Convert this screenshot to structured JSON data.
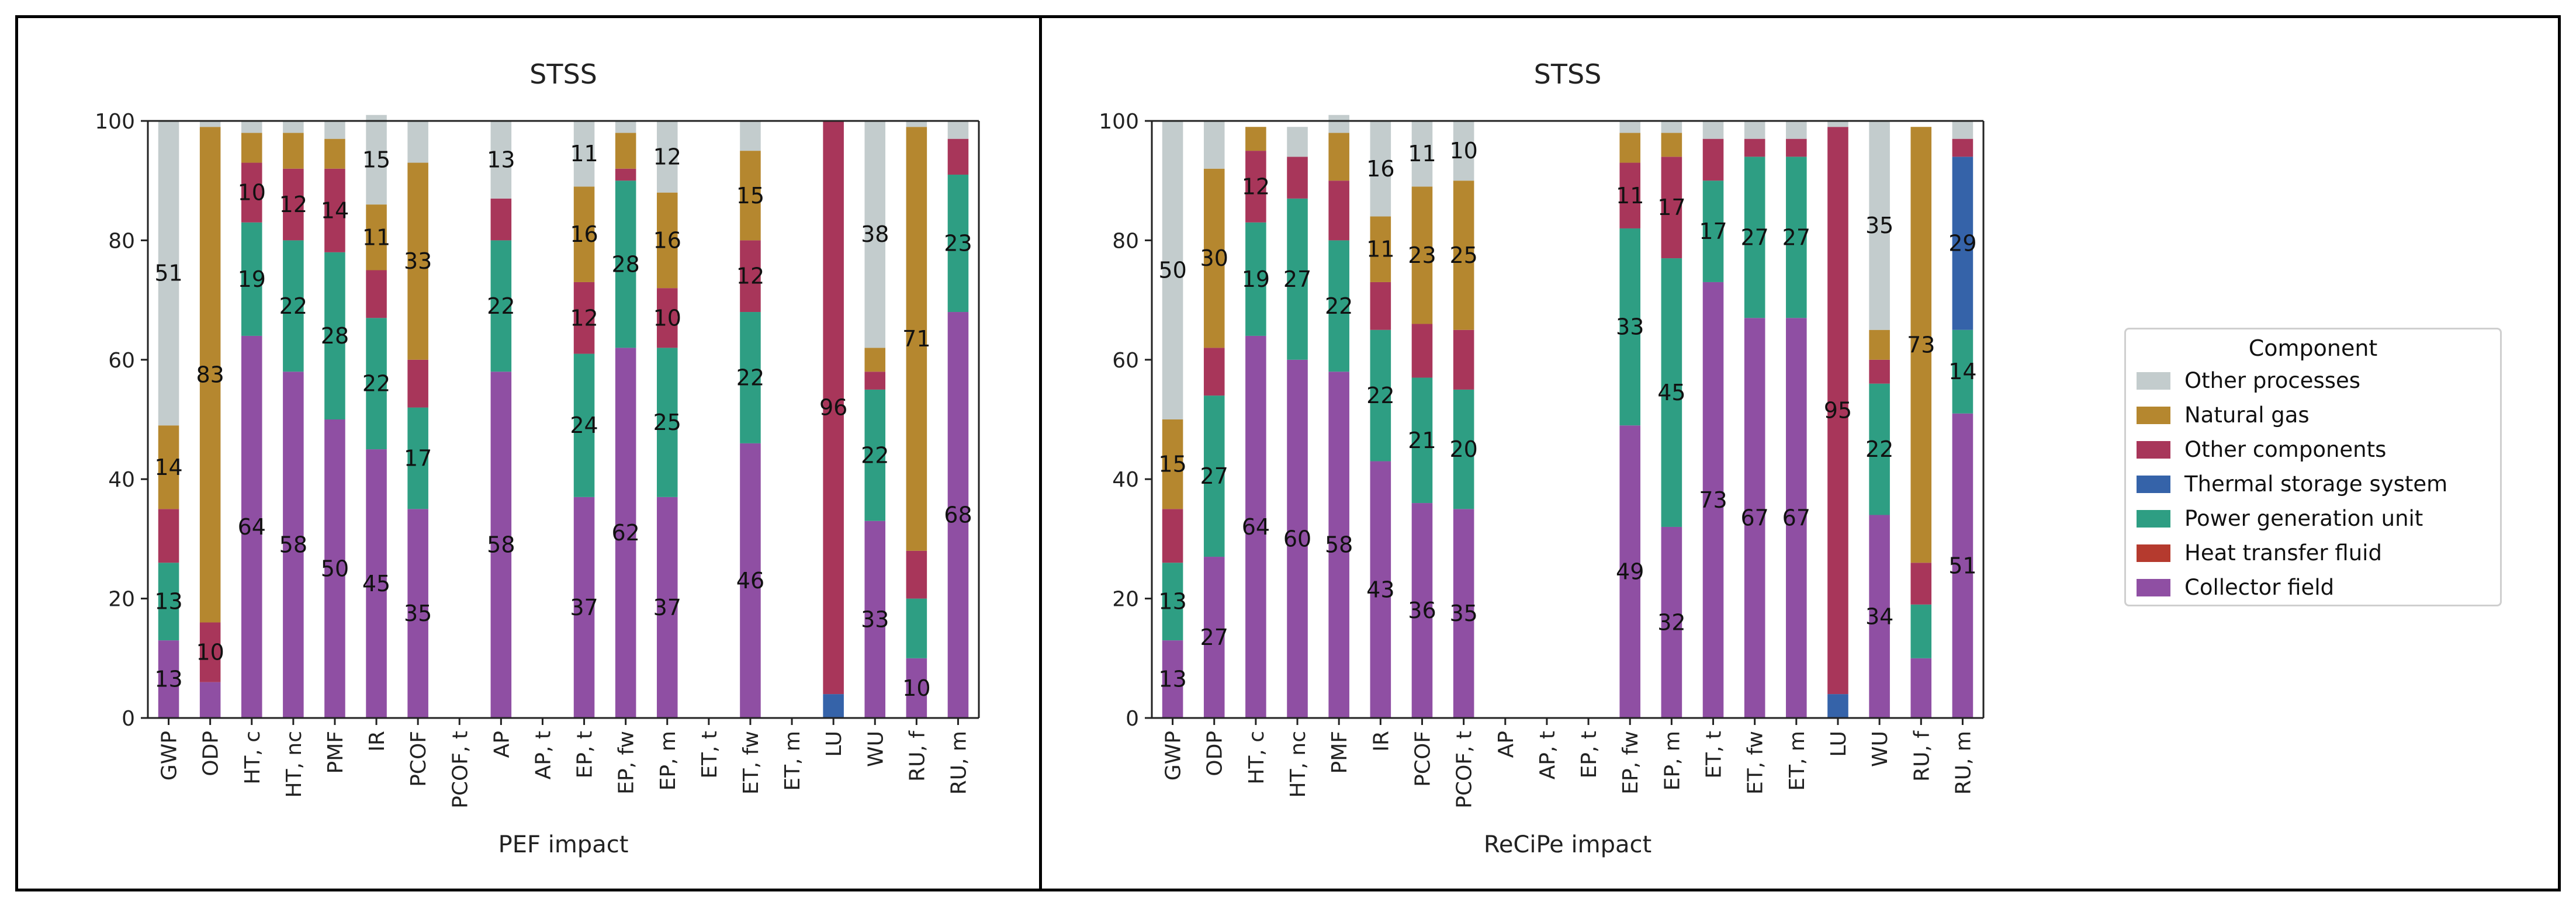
{
  "colors": {
    "Collector field": "#8f4fa3",
    "Heat transfer fluid": "#b53a2e",
    "Power generation unit": "#2e9e83",
    "Thermal storage system": "#3563a9",
    "Other components": "#a8365a",
    "Natural gas": "#b5872f",
    "Other processes": "#c3cccd"
  },
  "legend": {
    "title": "Component",
    "items": [
      "Other processes",
      "Natural gas",
      "Other components",
      "Thermal storage system",
      "Power generation unit",
      "Heat transfer fluid",
      "Collector field"
    ]
  },
  "chart_data": [
    {
      "type": "bar",
      "stacked": true,
      "title": "STSS",
      "xlabel": "PEF impact",
      "ylabel": "",
      "ylim": [
        0,
        100
      ],
      "yticks": [
        0,
        20,
        40,
        60,
        80,
        100
      ],
      "categories": [
        "GWP",
        "ODP",
        "HT, c",
        "HT, nc",
        "PMF",
        "IR",
        "PCOF",
        "PCOF, t",
        "AP",
        "AP, t",
        "EP, t",
        "EP, fw",
        "EP, m",
        "ET, t",
        "ET, fw",
        "ET, m",
        "LU",
        "WU",
        "RU, f",
        "RU, m"
      ],
      "series": [
        {
          "name": "Collector field",
          "values": [
            13,
            6,
            64,
            58,
            50,
            45,
            35,
            0,
            58,
            0,
            37,
            62,
            37,
            0,
            46,
            0,
            0,
            33,
            10,
            68
          ]
        },
        {
          "name": "Heat transfer fluid",
          "values": [
            0,
            0,
            0,
            0,
            0,
            0,
            0,
            0,
            0,
            0,
            0,
            0,
            0,
            0,
            0,
            0,
            0,
            0,
            0,
            0
          ]
        },
        {
          "name": "Power generation unit",
          "values": [
            13,
            0,
            19,
            22,
            28,
            22,
            17,
            0,
            22,
            0,
            24,
            28,
            25,
            0,
            22,
            0,
            0,
            22,
            10,
            23
          ]
        },
        {
          "name": "Thermal storage system",
          "values": [
            0,
            0,
            0,
            0,
            0,
            0,
            0,
            0,
            0,
            0,
            0,
            0,
            0,
            0,
            0,
            0,
            4,
            0,
            0,
            0
          ]
        },
        {
          "name": "Other components",
          "values": [
            9,
            10,
            10,
            12,
            14,
            8,
            8,
            0,
            7,
            0,
            12,
            2,
            10,
            0,
            12,
            0,
            96,
            3,
            8,
            6
          ]
        },
        {
          "name": "Natural gas",
          "values": [
            14,
            83,
            5,
            6,
            5,
            11,
            33,
            0,
            0,
            0,
            16,
            6,
            16,
            0,
            15,
            0,
            0,
            4,
            71,
            0
          ]
        },
        {
          "name": "Other processes",
          "values": [
            51,
            1,
            2,
            2,
            3,
            15,
            7,
            0,
            13,
            0,
            11,
            2,
            12,
            0,
            5,
            0,
            0,
            38,
            1,
            3
          ]
        }
      ],
      "labels": [
        {
          "ci": 0,
          "s": 0,
          "text": "13"
        },
        {
          "ci": 0,
          "s": 2,
          "text": "13"
        },
        {
          "ci": 0,
          "s": 5,
          "text": "14"
        },
        {
          "ci": 0,
          "s": 6,
          "text": "51"
        },
        {
          "ci": 1,
          "s": 4,
          "text": "10"
        },
        {
          "ci": 1,
          "s": 5,
          "text": "83"
        },
        {
          "ci": 2,
          "s": 0,
          "text": "64"
        },
        {
          "ci": 2,
          "s": 2,
          "text": "19"
        },
        {
          "ci": 2,
          "s": 4,
          "text": "10"
        },
        {
          "ci": 3,
          "s": 0,
          "text": "58"
        },
        {
          "ci": 3,
          "s": 2,
          "text": "22"
        },
        {
          "ci": 3,
          "s": 4,
          "text": "12"
        },
        {
          "ci": 4,
          "s": 0,
          "text": "50"
        },
        {
          "ci": 4,
          "s": 2,
          "text": "28"
        },
        {
          "ci": 4,
          "s": 4,
          "text": "14"
        },
        {
          "ci": 5,
          "s": 0,
          "text": "45"
        },
        {
          "ci": 5,
          "s": 2,
          "text": "22"
        },
        {
          "ci": 5,
          "s": 5,
          "text": "11"
        },
        {
          "ci": 5,
          "s": 6,
          "text": "15"
        },
        {
          "ci": 6,
          "s": 0,
          "text": "35"
        },
        {
          "ci": 6,
          "s": 2,
          "text": "17"
        },
        {
          "ci": 6,
          "s": 5,
          "text": "33"
        },
        {
          "ci": 8,
          "s": 0,
          "text": "58"
        },
        {
          "ci": 8,
          "s": 2,
          "text": "22"
        },
        {
          "ci": 8,
          "s": 6,
          "text": "13"
        },
        {
          "ci": 10,
          "s": 0,
          "text": "37"
        },
        {
          "ci": 10,
          "s": 2,
          "text": "24"
        },
        {
          "ci": 10,
          "s": 4,
          "text": "12"
        },
        {
          "ci": 10,
          "s": 5,
          "text": "16"
        },
        {
          "ci": 10,
          "s": 6,
          "text": "11"
        },
        {
          "ci": 11,
          "s": 0,
          "text": "62"
        },
        {
          "ci": 11,
          "s": 2,
          "text": "28"
        },
        {
          "ci": 12,
          "s": 0,
          "text": "37"
        },
        {
          "ci": 12,
          "s": 2,
          "text": "25"
        },
        {
          "ci": 12,
          "s": 4,
          "text": "10"
        },
        {
          "ci": 12,
          "s": 5,
          "text": "16"
        },
        {
          "ci": 12,
          "s": 6,
          "text": "12"
        },
        {
          "ci": 14,
          "s": 0,
          "text": "46"
        },
        {
          "ci": 14,
          "s": 2,
          "text": "22"
        },
        {
          "ci": 14,
          "s": 4,
          "text": "12"
        },
        {
          "ci": 14,
          "s": 5,
          "text": "15"
        },
        {
          "ci": 16,
          "s": 4,
          "text": "96"
        },
        {
          "ci": 17,
          "s": 0,
          "text": "33"
        },
        {
          "ci": 17,
          "s": 2,
          "text": "22"
        },
        {
          "ci": 17,
          "s": 6,
          "text": "38"
        },
        {
          "ci": 18,
          "s": 0,
          "text": "10"
        },
        {
          "ci": 18,
          "s": 5,
          "text": "71"
        },
        {
          "ci": 19,
          "s": 0,
          "text": "68"
        },
        {
          "ci": 19,
          "s": 2,
          "text": "23"
        }
      ]
    },
    {
      "type": "bar",
      "stacked": true,
      "title": "STSS",
      "xlabel": "ReCiPe impact",
      "ylabel": "",
      "ylim": [
        0,
        100
      ],
      "yticks": [
        0,
        20,
        40,
        60,
        80,
        100
      ],
      "categories": [
        "GWP",
        "ODP",
        "HT, c",
        "HT, nc",
        "PMF",
        "IR",
        "PCOF",
        "PCOF, t",
        "AP",
        "AP, t",
        "EP, t",
        "EP, fw",
        "EP, m",
        "ET, t",
        "ET, fw",
        "ET, m",
        "LU",
        "WU",
        "RU, f",
        "RU, m"
      ],
      "series": [
        {
          "name": "Collector field",
          "values": [
            13,
            27,
            64,
            60,
            58,
            43,
            36,
            35,
            0,
            0,
            0,
            49,
            32,
            73,
            67,
            67,
            0,
            34,
            10,
            51
          ]
        },
        {
          "name": "Heat transfer fluid",
          "values": [
            0,
            0,
            0,
            0,
            0,
            0,
            0,
            0,
            0,
            0,
            0,
            0,
            0,
            0,
            0,
            0,
            0,
            0,
            0,
            0
          ]
        },
        {
          "name": "Power generation unit",
          "values": [
            13,
            27,
            19,
            27,
            22,
            22,
            21,
            20,
            0,
            0,
            0,
            33,
            45,
            17,
            27,
            27,
            0,
            22,
            9,
            14
          ]
        },
        {
          "name": "Thermal storage system",
          "values": [
            0,
            0,
            0,
            0,
            0,
            0,
            0,
            0,
            0,
            0,
            0,
            0,
            0,
            0,
            0,
            0,
            4,
            0,
            0,
            29
          ]
        },
        {
          "name": "Other components",
          "values": [
            9,
            8,
            12,
            7,
            10,
            8,
            9,
            10,
            0,
            0,
            0,
            11,
            17,
            7,
            3,
            3,
            95,
            4,
            7,
            3
          ]
        },
        {
          "name": "Natural gas",
          "values": [
            15,
            30,
            4,
            0,
            8,
            11,
            23,
            25,
            0,
            0,
            0,
            5,
            4,
            0,
            0,
            0,
            0,
            5,
            73,
            0
          ]
        },
        {
          "name": "Other processes",
          "values": [
            50,
            8,
            0,
            5,
            3,
            16,
            11,
            10,
            0,
            0,
            0,
            2,
            2,
            3,
            3,
            3,
            1,
            35,
            0,
            3
          ]
        }
      ],
      "labels": [
        {
          "ci": 0,
          "s": 0,
          "text": "13"
        },
        {
          "ci": 0,
          "s": 2,
          "text": "13"
        },
        {
          "ci": 0,
          "s": 5,
          "text": "15"
        },
        {
          "ci": 0,
          "s": 6,
          "text": "50"
        },
        {
          "ci": 1,
          "s": 0,
          "text": "27"
        },
        {
          "ci": 1,
          "s": 2,
          "text": "27"
        },
        {
          "ci": 1,
          "s": 5,
          "text": "30"
        },
        {
          "ci": 2,
          "s": 0,
          "text": "64"
        },
        {
          "ci": 2,
          "s": 2,
          "text": "19"
        },
        {
          "ci": 2,
          "s": 4,
          "text": "12"
        },
        {
          "ci": 3,
          "s": 0,
          "text": "60"
        },
        {
          "ci": 3,
          "s": 2,
          "text": "27"
        },
        {
          "ci": 4,
          "s": 0,
          "text": "58"
        },
        {
          "ci": 4,
          "s": 2,
          "text": "22"
        },
        {
          "ci": 5,
          "s": 0,
          "text": "43"
        },
        {
          "ci": 5,
          "s": 2,
          "text": "22"
        },
        {
          "ci": 5,
          "s": 5,
          "text": "11"
        },
        {
          "ci": 5,
          "s": 6,
          "text": "16"
        },
        {
          "ci": 6,
          "s": 0,
          "text": "36"
        },
        {
          "ci": 6,
          "s": 2,
          "text": "21"
        },
        {
          "ci": 6,
          "s": 5,
          "text": "23"
        },
        {
          "ci": 6,
          "s": 6,
          "text": "11"
        },
        {
          "ci": 7,
          "s": 0,
          "text": "35"
        },
        {
          "ci": 7,
          "s": 2,
          "text": "20"
        },
        {
          "ci": 7,
          "s": 5,
          "text": "25"
        },
        {
          "ci": 7,
          "s": 6,
          "text": "10"
        },
        {
          "ci": 11,
          "s": 0,
          "text": "49"
        },
        {
          "ci": 11,
          "s": 2,
          "text": "33"
        },
        {
          "ci": 11,
          "s": 4,
          "text": "11"
        },
        {
          "ci": 12,
          "s": 0,
          "text": "32"
        },
        {
          "ci": 12,
          "s": 2,
          "text": "45"
        },
        {
          "ci": 12,
          "s": 4,
          "text": "17"
        },
        {
          "ci": 13,
          "s": 0,
          "text": "73"
        },
        {
          "ci": 13,
          "s": 2,
          "text": "17"
        },
        {
          "ci": 14,
          "s": 0,
          "text": "67"
        },
        {
          "ci": 14,
          "s": 2,
          "text": "27"
        },
        {
          "ci": 15,
          "s": 0,
          "text": "67"
        },
        {
          "ci": 15,
          "s": 2,
          "text": "27"
        },
        {
          "ci": 16,
          "s": 4,
          "text": "95"
        },
        {
          "ci": 17,
          "s": 0,
          "text": "34"
        },
        {
          "ci": 17,
          "s": 2,
          "text": "22"
        },
        {
          "ci": 17,
          "s": 6,
          "text": "35"
        },
        {
          "ci": 18,
          "s": 5,
          "text": "73"
        },
        {
          "ci": 19,
          "s": 0,
          "text": "51"
        },
        {
          "ci": 19,
          "s": 2,
          "text": "14"
        },
        {
          "ci": 19,
          "s": 3,
          "text": "29"
        }
      ]
    }
  ]
}
